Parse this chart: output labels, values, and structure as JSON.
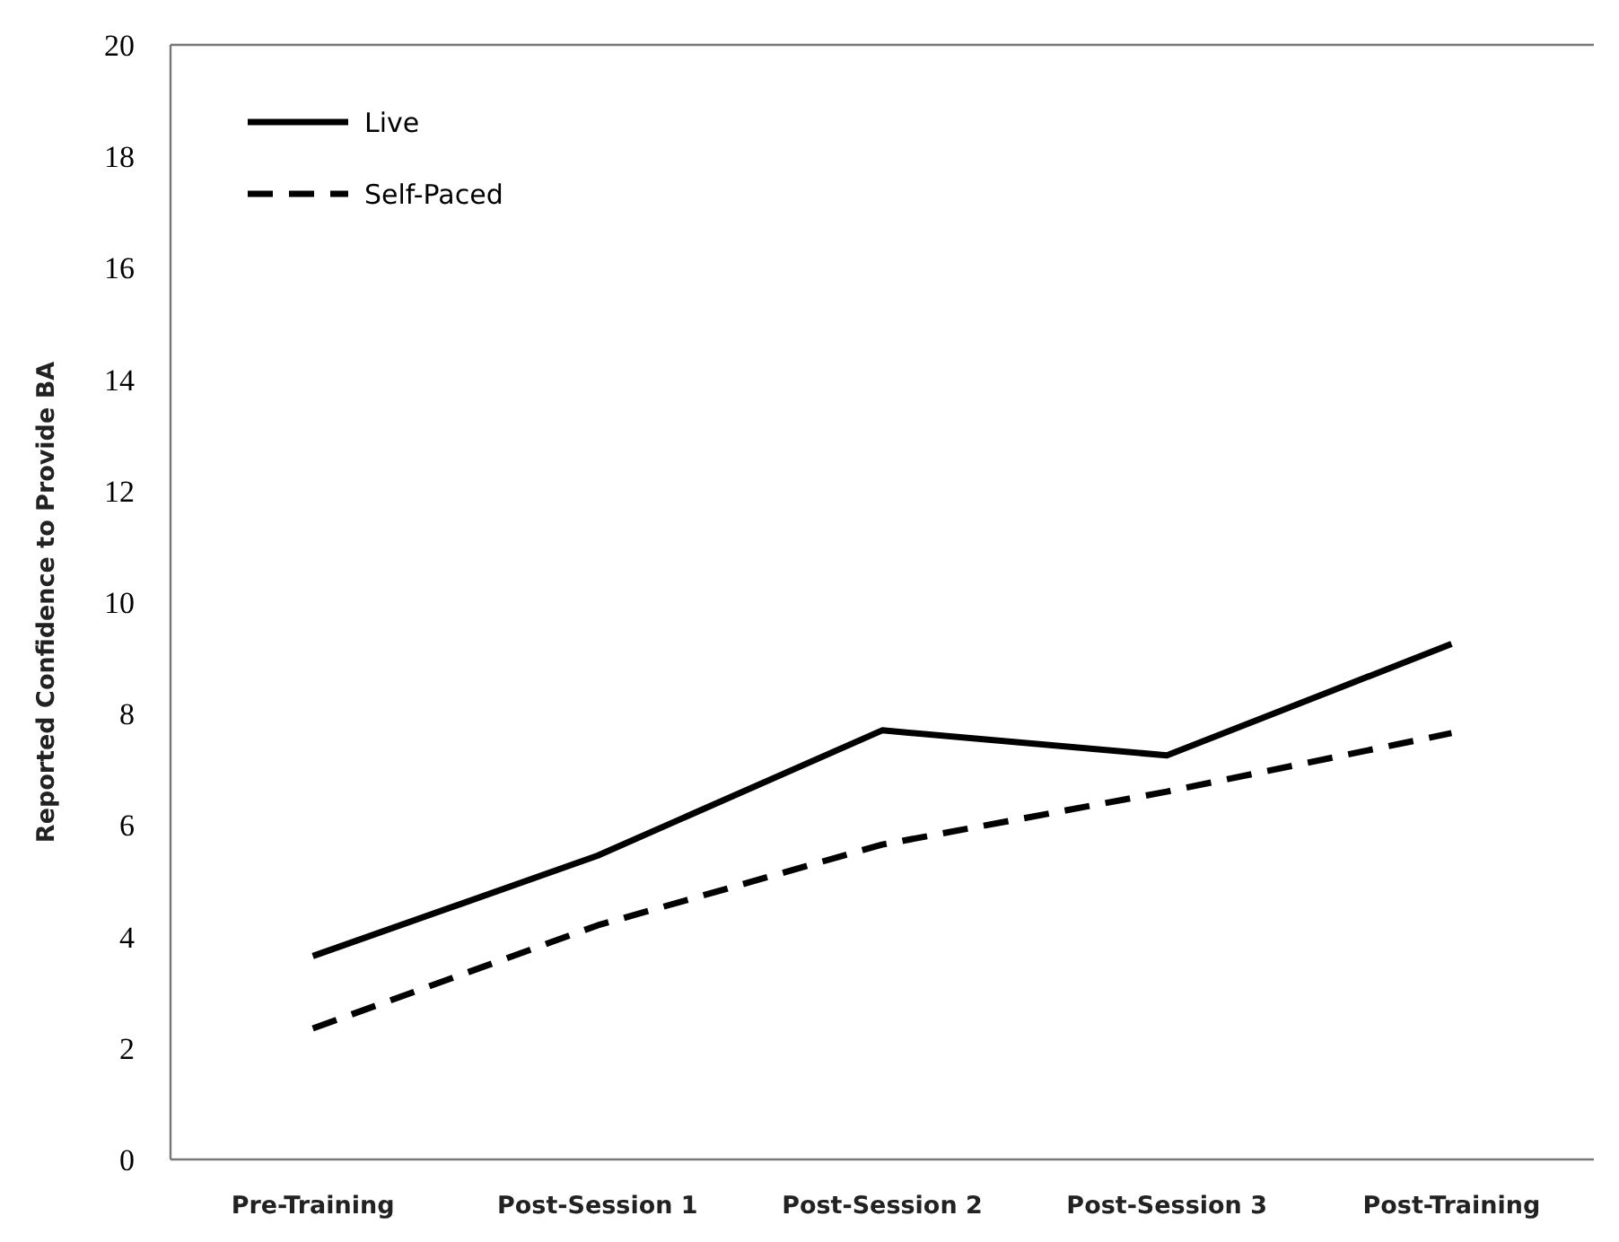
{
  "chart_data": {
    "type": "line",
    "ylabel": "Reported Confidence to Provide BA",
    "categories": [
      "Pre-Training",
      "Post-Session 1",
      "Post-Session 2",
      "Post-Session 3",
      "Post-Training"
    ],
    "series": [
      {
        "name": "Live",
        "color": "#000000",
        "line_style": "solid",
        "values": [
          3.65,
          5.45,
          7.7,
          7.25,
          9.25
        ]
      },
      {
        "name": "Self-Paced",
        "color": "#000000",
        "line_style": "dashed",
        "values": [
          2.35,
          4.2,
          5.65,
          6.6,
          7.65
        ]
      }
    ],
    "ylim": [
      0,
      20
    ],
    "yticks": [
      0,
      2,
      4,
      6,
      8,
      10,
      12,
      14,
      16,
      18,
      20
    ],
    "grid": false,
    "legend": "top left",
    "marker": "none"
  }
}
